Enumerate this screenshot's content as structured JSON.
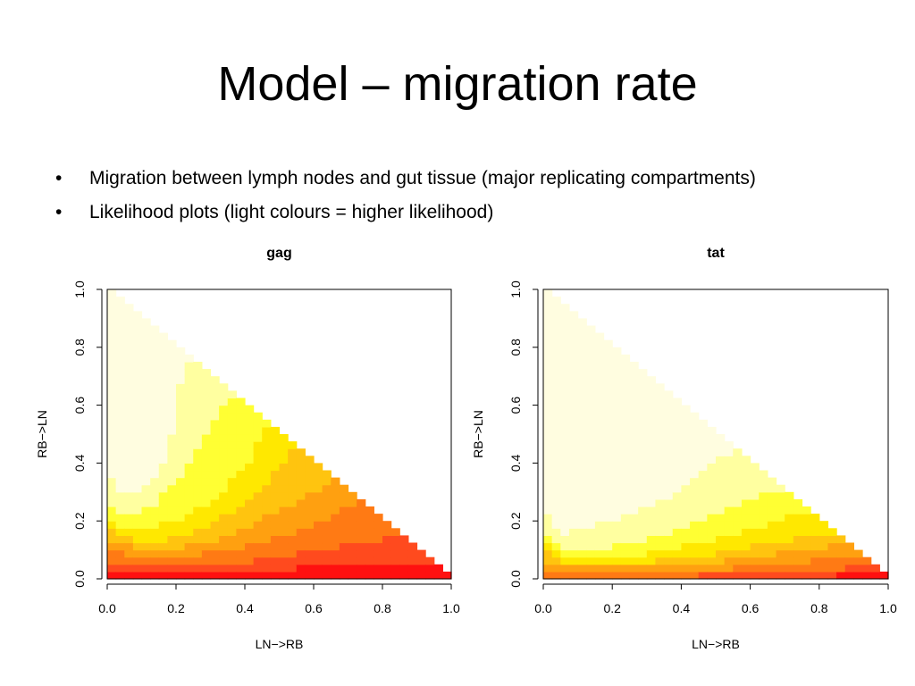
{
  "slide": {
    "title": "Model – migration rate",
    "bullets": [
      "Migration between lymph nodes and gut tissue (major replicating compartments)",
      "Likelihood plots (light colours = higher likelihood)"
    ]
  },
  "chart_data": [
    {
      "type": "heatmap",
      "title": "gag",
      "xlabel": "LN−>RB",
      "ylabel": "RB−>LN",
      "xlim": [
        0,
        1
      ],
      "ylim": [
        0,
        1
      ],
      "xticks": [
        "0.0",
        "0.2",
        "0.4",
        "0.6",
        "0.8",
        "1.0"
      ],
      "yticks": [
        "0.0",
        "0.2",
        "0.4",
        "0.6",
        "0.8",
        "1.0"
      ],
      "domain": "x + y <= 1",
      "levels": [
        "#fffde0",
        "#ffffa0",
        "#ffff33",
        "#ffe800",
        "#ffc40f",
        "#ffa010",
        "#ff7a14",
        "#ff4a1e",
        "#ff1010"
      ],
      "level_boundaries": [
        {
          "level": 1,
          "y": [
            [
              0.0,
              0.4
            ],
            [
              0.02,
              0.33
            ],
            [
              0.05,
              0.3
            ],
            [
              0.1,
              0.31
            ],
            [
              0.15,
              0.36
            ],
            [
              0.18,
              0.45
            ],
            [
              0.2,
              0.6
            ],
            [
              0.22,
              0.72
            ],
            [
              0.24,
              0.76
            ]
          ]
        },
        {
          "level": 2,
          "y": [
            [
              0.0,
              0.3
            ],
            [
              0.02,
              0.24
            ],
            [
              0.05,
              0.22
            ],
            [
              0.1,
              0.23
            ],
            [
              0.15,
              0.27
            ],
            [
              0.2,
              0.34
            ],
            [
              0.25,
              0.43
            ],
            [
              0.3,
              0.53
            ],
            [
              0.36,
              0.63
            ]
          ]
        },
        {
          "level": 3,
          "y": [
            [
              0.0,
              0.24
            ],
            [
              0.02,
              0.19
            ],
            [
              0.05,
              0.17
            ],
            [
              0.1,
              0.17
            ],
            [
              0.2,
              0.2
            ],
            [
              0.3,
              0.27
            ],
            [
              0.4,
              0.38
            ],
            [
              0.46,
              0.53
            ]
          ]
        },
        {
          "level": 4,
          "y": [
            [
              0.0,
              0.2
            ],
            [
              0.02,
              0.15
            ],
            [
              0.1,
              0.13
            ],
            [
              0.2,
              0.14
            ],
            [
              0.3,
              0.19
            ],
            [
              0.4,
              0.26
            ],
            [
              0.5,
              0.38
            ],
            [
              0.54,
              0.46
            ]
          ]
        },
        {
          "level": 5,
          "y": [
            [
              0.0,
              0.15
            ],
            [
              0.02,
              0.12
            ],
            [
              0.1,
              0.11
            ],
            [
              0.2,
              0.11
            ],
            [
              0.3,
              0.13
            ],
            [
              0.4,
              0.17
            ],
            [
              0.5,
              0.24
            ],
            [
              0.6,
              0.3
            ],
            [
              0.66,
              0.34
            ]
          ]
        },
        {
          "level": 6,
          "y": [
            [
              0.0,
              0.11
            ],
            [
              0.02,
              0.09
            ],
            [
              0.1,
              0.08
            ],
            [
              0.2,
              0.08
            ],
            [
              0.3,
              0.09
            ],
            [
              0.4,
              0.11
            ],
            [
              0.5,
              0.15
            ],
            [
              0.6,
              0.18
            ],
            [
              0.7,
              0.25
            ],
            [
              0.73,
              0.27
            ]
          ]
        },
        {
          "level": 7,
          "y": [
            [
              0.0,
              0.06
            ],
            [
              0.1,
              0.05
            ],
            [
              0.2,
              0.05
            ],
            [
              0.3,
              0.05
            ],
            [
              0.4,
              0.06
            ],
            [
              0.5,
              0.08
            ],
            [
              0.6,
              0.1
            ],
            [
              0.7,
              0.12
            ],
            [
              0.8,
              0.14
            ],
            [
              0.85,
              0.15
            ]
          ]
        },
        {
          "level": 8,
          "y": [
            [
              0.0,
              0.03
            ],
            [
              0.2,
              0.025
            ],
            [
              0.4,
              0.03
            ],
            [
              0.6,
              0.04
            ],
            [
              0.8,
              0.06
            ],
            [
              0.9,
              0.06
            ],
            [
              0.94,
              0.06
            ]
          ]
        }
      ]
    },
    {
      "type": "heatmap",
      "title": "tat",
      "xlabel": "LN−>RB",
      "ylabel": "RB−>LN",
      "xlim": [
        0,
        1
      ],
      "ylim": [
        0,
        1
      ],
      "xticks": [
        "0.0",
        "0.2",
        "0.4",
        "0.6",
        "0.8",
        "1.0"
      ],
      "yticks": [
        "0.0",
        "0.2",
        "0.4",
        "0.6",
        "0.8",
        "1.0"
      ],
      "domain": "x + y <= 1",
      "levels": [
        "#fffde0",
        "#ffffa0",
        "#ffff33",
        "#ffe800",
        "#ffc40f",
        "#ffa010",
        "#ff7a14",
        "#ff4a1e",
        "#ff1010"
      ],
      "level_boundaries": [
        {
          "level": 1,
          "y": [
            [
              0.0,
              0.34
            ],
            [
              0.01,
              0.22
            ],
            [
              0.03,
              0.17
            ],
            [
              0.07,
              0.16
            ],
            [
              0.15,
              0.19
            ],
            [
              0.25,
              0.22
            ],
            [
              0.35,
              0.27
            ],
            [
              0.45,
              0.36
            ],
            [
              0.52,
              0.42
            ],
            [
              0.56,
              0.45
            ]
          ]
        },
        {
          "level": 2,
          "y": [
            [
              0.0,
              0.26
            ],
            [
              0.01,
              0.16
            ],
            [
              0.03,
              0.12
            ],
            [
              0.1,
              0.1
            ],
            [
              0.2,
              0.11
            ],
            [
              0.3,
              0.14
            ],
            [
              0.4,
              0.17
            ],
            [
              0.5,
              0.22
            ],
            [
              0.6,
              0.28
            ],
            [
              0.64,
              0.3
            ]
          ]
        },
        {
          "level": 3,
          "y": [
            [
              0.0,
              0.18
            ],
            [
              0.01,
              0.12
            ],
            [
              0.05,
              0.08
            ],
            [
              0.1,
              0.07
            ],
            [
              0.2,
              0.07
            ],
            [
              0.3,
              0.09
            ],
            [
              0.4,
              0.11
            ],
            [
              0.5,
              0.14
            ],
            [
              0.6,
              0.17
            ],
            [
              0.7,
              0.21
            ],
            [
              0.74,
              0.22
            ]
          ]
        },
        {
          "level": 4,
          "y": [
            [
              0.0,
              0.1
            ],
            [
              0.05,
              0.06
            ],
            [
              0.2,
              0.05
            ],
            [
              0.3,
              0.06
            ],
            [
              0.4,
              0.07
            ],
            [
              0.5,
              0.09
            ],
            [
              0.6,
              0.11
            ],
            [
              0.7,
              0.13
            ],
            [
              0.78,
              0.15
            ],
            [
              0.8,
              0.16
            ]
          ]
        },
        {
          "level": 5,
          "y": [
            [
              0.0,
              0.05
            ],
            [
              0.1,
              0.04
            ],
            [
              0.3,
              0.04
            ],
            [
              0.4,
              0.05
            ],
            [
              0.5,
              0.06
            ],
            [
              0.6,
              0.07
            ],
            [
              0.7,
              0.09
            ],
            [
              0.8,
              0.11
            ],
            [
              0.86,
              0.12
            ]
          ]
        },
        {
          "level": 6,
          "y": [
            [
              0.0,
              0.03
            ],
            [
              0.2,
              0.03
            ],
            [
              0.4,
              0.03
            ],
            [
              0.6,
              0.04
            ],
            [
              0.7,
              0.05
            ],
            [
              0.8,
              0.07
            ],
            [
              0.9,
              0.08
            ],
            [
              0.92,
              0.08
            ]
          ]
        },
        {
          "level": 7,
          "y": [
            [
              0.0,
              0.01
            ],
            [
              0.4,
              0.01
            ],
            [
              0.6,
              0.02
            ],
            [
              0.8,
              0.03
            ],
            [
              0.9,
              0.04
            ],
            [
              0.95,
              0.04
            ]
          ]
        },
        {
          "level": 8,
          "y": [
            [
              0.0,
              0.005
            ],
            [
              0.5,
              0.005
            ],
            [
              0.8,
              0.01
            ],
            [
              0.9,
              0.015
            ],
            [
              1.0,
              0.02
            ]
          ]
        }
      ]
    }
  ]
}
